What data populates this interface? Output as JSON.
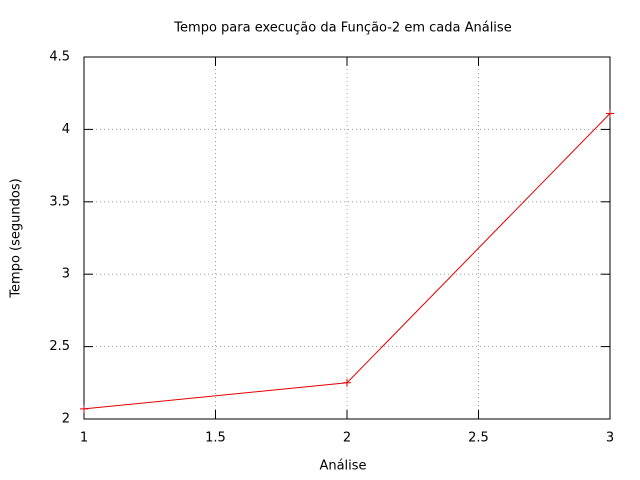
{
  "chart_data": {
    "type": "line",
    "title": "Tempo para execução da Função-2 em cada Análise",
    "x_label": "Análise",
    "y_label": "Tempo (segundos)",
    "x": [
      1,
      2,
      3
    ],
    "series": [
      {
        "color": "#e00000",
        "values": [
          2.07,
          2.25,
          4.11
        ]
      }
    ],
    "xlim": [
      1,
      3
    ],
    "xticks": [
      1,
      1.5,
      2,
      2.5,
      3
    ],
    "ylim": [
      2,
      4.5
    ],
    "yticks": [
      2,
      2.5,
      3,
      3.5,
      4,
      4.5
    ],
    "grid": true
  }
}
